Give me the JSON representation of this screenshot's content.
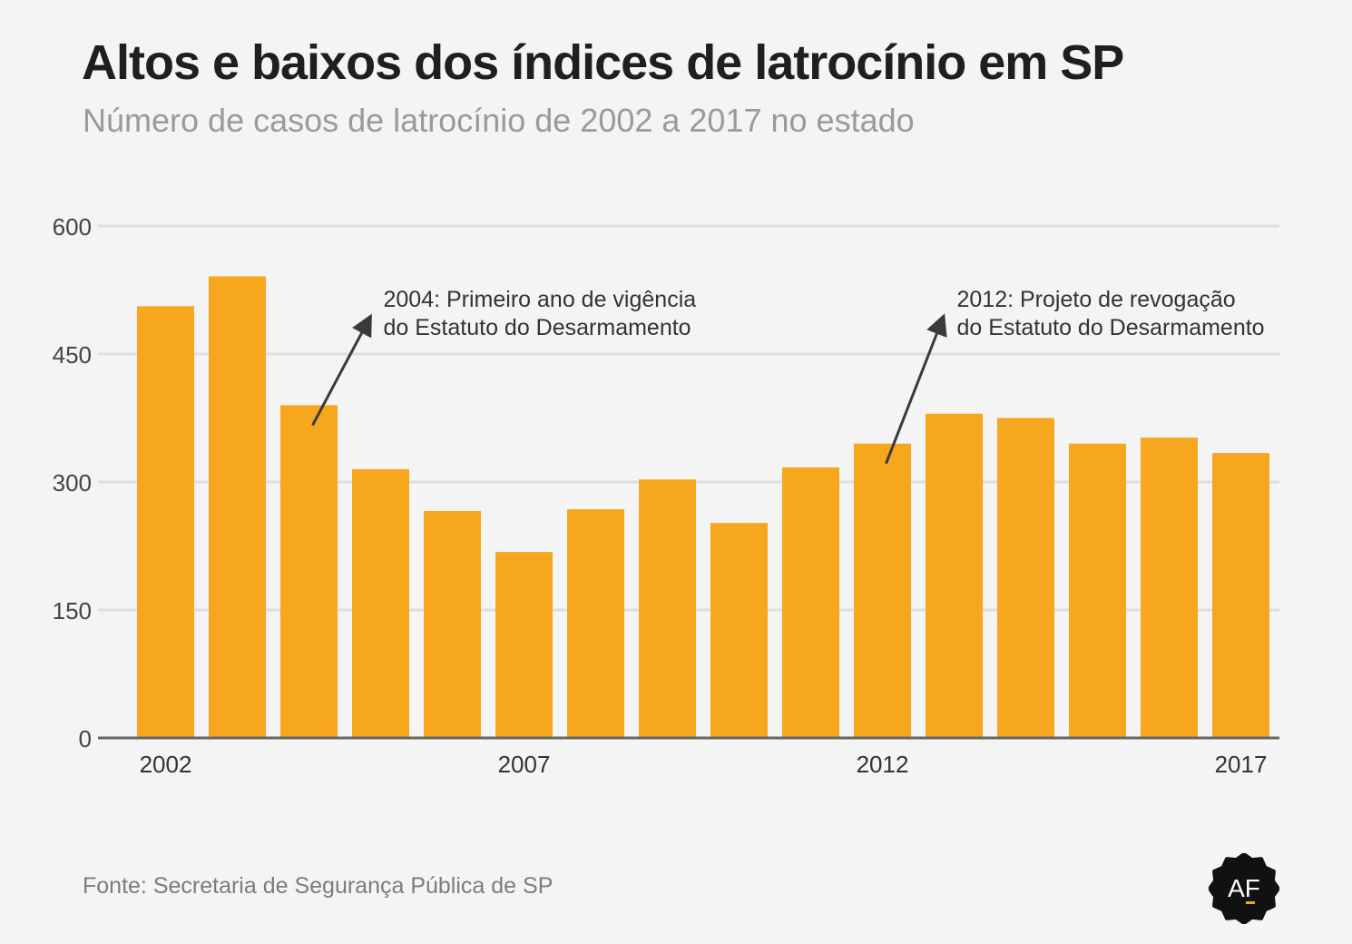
{
  "title": "Altos e baixos dos índices de latrocínio em SP",
  "subtitle": "Número de casos de latrocínio de 2002 a 2017 no estado",
  "source": "Fonte: Secretaria de Segurança Pública de SP",
  "logo_text": "AF",
  "colors": {
    "bar": "#f7a71e",
    "background": "#f4f4f4",
    "grid": "#dedede",
    "axis": "#666666",
    "arrow": "#3a3a3a",
    "logo_bg": "#111111",
    "logo_accent": "#f7a71e"
  },
  "chart_data": {
    "type": "bar",
    "categories": [
      "2002",
      "2003",
      "2004",
      "2005",
      "2006",
      "2007",
      "2008",
      "2009",
      "2010",
      "2011",
      "2012",
      "2013",
      "2014",
      "2015",
      "2016",
      "2017"
    ],
    "values": [
      506,
      541,
      390,
      315,
      266,
      218,
      268,
      303,
      252,
      317,
      345,
      380,
      375,
      345,
      352,
      334
    ],
    "xticks": [
      "2002",
      "2007",
      "2012",
      "2017"
    ],
    "yticks": [
      0,
      150,
      300,
      450,
      600
    ],
    "ylim": [
      0,
      600
    ],
    "grid": true,
    "annotations": [
      {
        "category": "2004",
        "lines": [
          "2004: Primeiro ano de vigência",
          "do Estatuto do Desarmamento"
        ]
      },
      {
        "category": "2012",
        "lines": [
          "2012: Projeto de revogação",
          "do Estatuto do Desarmamento"
        ]
      }
    ]
  }
}
